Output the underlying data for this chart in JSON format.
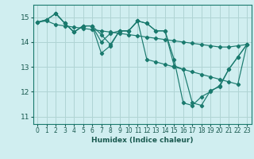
{
  "xlabel": "Humidex (Indice chaleur)",
  "ylabel": "",
  "background_color": "#d0eef0",
  "grid_color": "#b0d4d4",
  "line_color": "#1a7a6e",
  "xlim": [
    -0.5,
    23.5
  ],
  "ylim": [
    10.7,
    15.5
  ],
  "yticks": [
    11,
    12,
    13,
    14,
    15
  ],
  "xticks": [
    0,
    1,
    2,
    3,
    4,
    5,
    6,
    7,
    8,
    9,
    10,
    11,
    12,
    13,
    14,
    15,
    16,
    17,
    18,
    19,
    20,
    21,
    22,
    23
  ],
  "lines": [
    {
      "x": [
        0,
        1,
        2,
        3,
        4,
        5,
        6,
        7,
        8,
        9,
        10,
        11,
        12,
        13,
        14,
        15,
        16,
        17,
        18,
        19,
        20,
        21,
        22,
        23
      ],
      "y": [
        14.8,
        14.85,
        14.7,
        14.65,
        14.6,
        14.55,
        14.5,
        14.45,
        14.4,
        14.35,
        14.3,
        14.25,
        14.2,
        14.15,
        14.1,
        14.05,
        14.0,
        13.95,
        13.9,
        13.85,
        13.8,
        13.8,
        13.85,
        13.9
      ]
    },
    {
      "x": [
        0,
        1,
        2,
        3,
        4,
        5,
        6,
        7,
        8,
        9,
        10,
        11,
        12,
        13,
        14,
        15,
        16,
        17,
        18,
        19,
        20,
        21,
        22,
        23
      ],
      "y": [
        14.8,
        14.9,
        15.15,
        14.75,
        14.4,
        14.65,
        14.65,
        14.3,
        13.9,
        14.45,
        14.45,
        14.85,
        14.75,
        14.45,
        14.45,
        13.3,
        11.55,
        11.45,
        11.8,
        12.0,
        12.25,
        12.9,
        13.4,
        13.9
      ]
    },
    {
      "x": [
        0,
        1,
        2,
        3,
        4,
        5,
        6,
        7,
        8,
        9,
        10,
        11,
        12,
        13,
        14,
        15,
        16,
        17,
        18,
        19,
        20,
        21,
        22,
        23
      ],
      "y": [
        14.8,
        14.9,
        15.15,
        14.75,
        14.4,
        14.65,
        14.65,
        13.55,
        13.85,
        14.45,
        14.45,
        14.85,
        14.75,
        14.45,
        14.45,
        13.05,
        12.9,
        11.55,
        11.45,
        12.05,
        12.2,
        12.9,
        13.4,
        13.9
      ]
    },
    {
      "x": [
        2,
        3,
        4,
        5,
        6,
        7,
        8,
        9,
        10,
        11,
        12,
        13,
        14,
        15,
        16,
        17,
        18,
        19,
        20,
        21,
        22,
        23
      ],
      "y": [
        15.15,
        14.75,
        14.4,
        14.65,
        14.65,
        14.0,
        14.35,
        14.45,
        14.45,
        14.85,
        13.3,
        13.2,
        13.1,
        13.0,
        12.9,
        12.8,
        12.7,
        12.6,
        12.5,
        12.4,
        12.3,
        13.9
      ]
    }
  ]
}
